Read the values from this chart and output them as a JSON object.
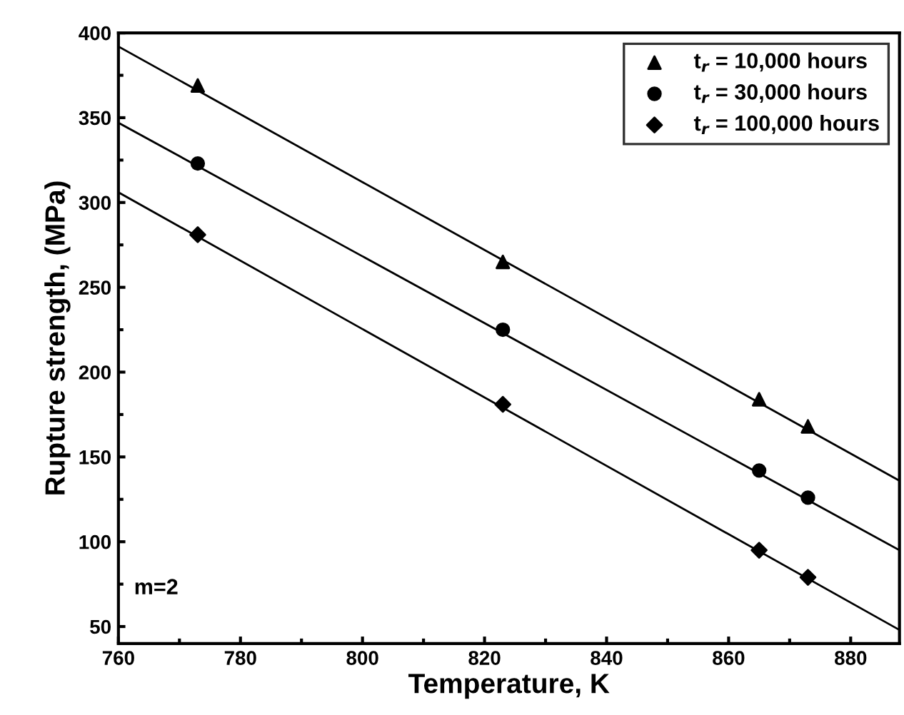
{
  "chart_data": {
    "type": "scatter",
    "xlabel": "Temperature, K",
    "ylabel": "Rupture strength, (MPa)",
    "xlim": [
      760,
      888
    ],
    "ylim": [
      40,
      400
    ],
    "xticks": [
      760,
      {
        "value": 770,
        "label": null
      },
      780,
      {
        "value": 790,
        "label": null
      },
      800,
      {
        "value": 810,
        "label": null
      },
      820,
      {
        "value": 830,
        "label": null
      },
      840,
      {
        "value": 850,
        "label": null
      },
      860,
      {
        "value": 870,
        "label": null
      },
      880
    ],
    "yticks": [
      50,
      {
        "value": 75,
        "label": null
      },
      100,
      {
        "value": 125,
        "label": null
      },
      150,
      {
        "value": 175,
        "label": null
      },
      200,
      {
        "value": 225,
        "label": null
      },
      250,
      {
        "value": 275,
        "label": null
      },
      300,
      {
        "value": 325,
        "label": null
      },
      350,
      {
        "value": 375,
        "label": null
      },
      400
    ],
    "legend": "top right",
    "grid": false,
    "annotations": [
      "m=2"
    ],
    "series": [
      {
        "name": "t$_{r}$ = 10,000 hours",
        "color": "#000000",
        "marker": "triangle",
        "x": [
          773,
          823,
          865,
          873
        ],
        "values": [
          369,
          265,
          184,
          168
        ]
      },
      {
        "name": "t$_{r}$ = 30,000 hours",
        "color": "#000000",
        "marker": "circle",
        "x": [
          773,
          823,
          865,
          873
        ],
        "values": [
          323,
          225,
          142,
          126
        ]
      },
      {
        "name": "t$_{r}$ = 100,000 hours",
        "color": "#000000",
        "marker": "diamond",
        "x": [
          773,
          823,
          865,
          873
        ],
        "values": [
          281,
          181,
          95,
          79
        ]
      },
      {
        "type": "line",
        "color": "#000000",
        "line_style": "solid",
        "x": [
          760,
          888
        ],
        "values": [
          392,
          136
        ]
      },
      {
        "type": "line",
        "color": "#000000",
        "line_style": "solid",
        "x": [
          760,
          888
        ],
        "values": [
          347,
          95
        ]
      },
      {
        "type": "line",
        "color": "#000000",
        "line_style": "solid",
        "x": [
          760,
          888
        ],
        "values": [
          306,
          48
        ]
      }
    ]
  }
}
